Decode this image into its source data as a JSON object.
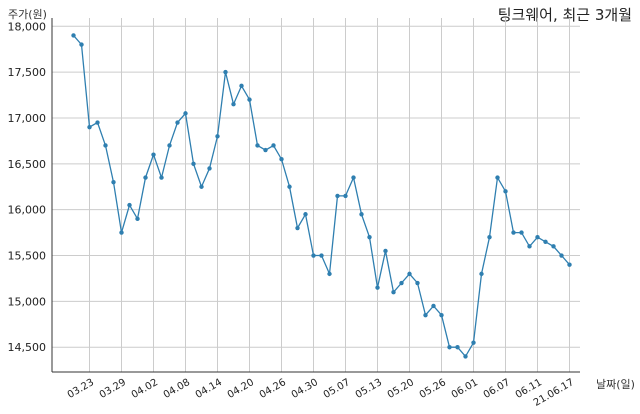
{
  "chart_data": {
    "type": "line",
    "title": "팅크웨어, 최근 3개월",
    "ylabel": "주가(원)",
    "xlabel": "날짜(일)",
    "ylim": [
      14230,
      18090
    ],
    "yticks": [
      14500,
      15000,
      15500,
      16000,
      16500,
      17000,
      17500,
      18000
    ],
    "ytick_labels": [
      "14,500",
      "15,000",
      "15,500",
      "16,000",
      "16,500",
      "17,000",
      "17,500",
      "18,000"
    ],
    "xticks": [
      "03.23",
      "03.29",
      "04.02",
      "04.08",
      "04.14",
      "04.20",
      "04.26",
      "04.30",
      "05.07",
      "05.13",
      "05.20",
      "05.26",
      "06.01",
      "06.07",
      "06.11",
      "21.06.17"
    ],
    "xtick_index": [
      2,
      6,
      10,
      14,
      18,
      22,
      26,
      30,
      34,
      38,
      42,
      46,
      50,
      54,
      58,
      62
    ],
    "grid": true,
    "color": "#2f7fb0",
    "series": [
      {
        "values": [
          17900,
          17800,
          16900,
          16950,
          16700,
          16300,
          15750,
          16050,
          15900,
          16350,
          16600,
          16350,
          16700,
          16950,
          17050,
          16500,
          16250,
          16450,
          16800,
          17500,
          17150,
          17350,
          17200,
          16700,
          16650,
          16700,
          16550,
          16250,
          15800,
          15950,
          15500,
          15500,
          15300,
          16150,
          16150,
          16350,
          15950,
          15700,
          15150,
          15550,
          15100,
          15200,
          15300,
          15200,
          14850,
          14950,
          14850,
          14500,
          14500,
          14400,
          14550,
          15300,
          15700,
          16350,
          16200,
          15750,
          15750,
          15600,
          15700,
          15650,
          15600,
          15500,
          15400
        ]
      }
    ]
  }
}
